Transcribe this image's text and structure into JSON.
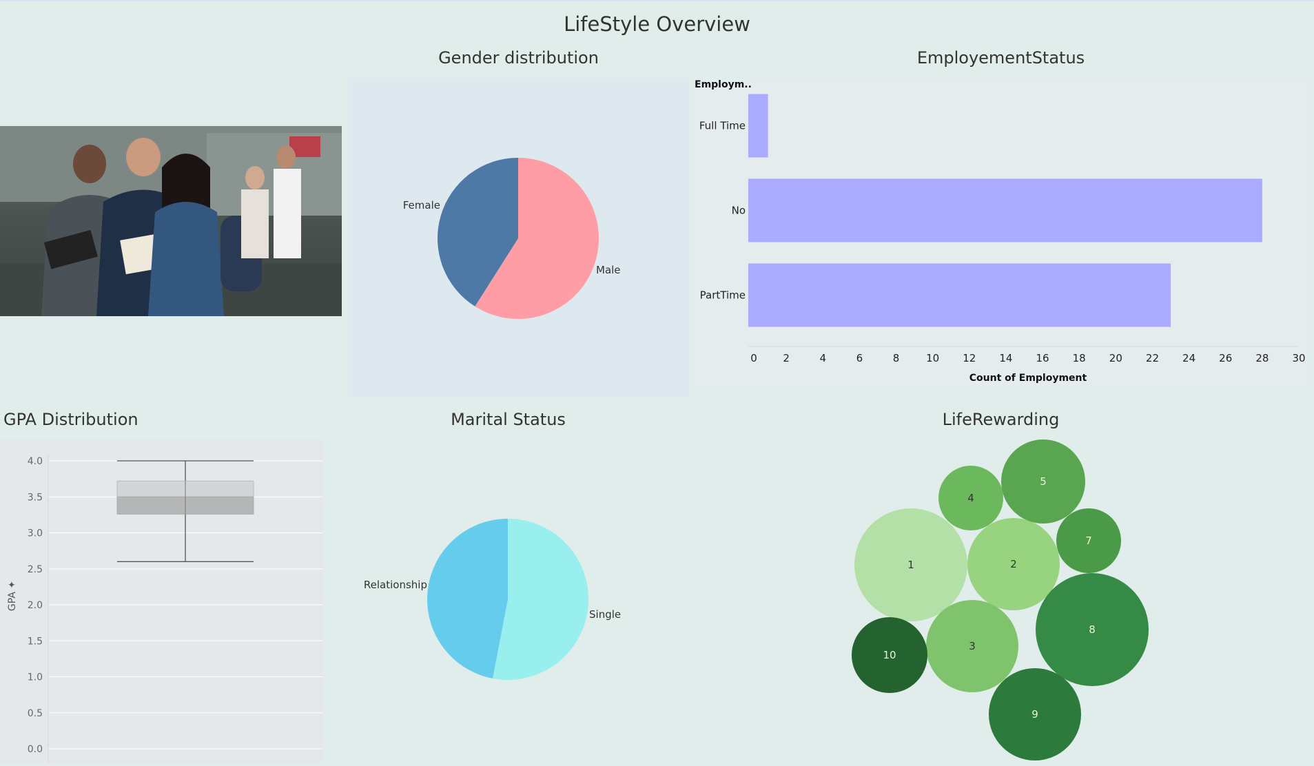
{
  "dashboard": {
    "title": "LifeStyle Overview"
  },
  "sections": {
    "gender": "Gender distribution",
    "employment": "EmployementStatus",
    "gpa": "GPA Distribution",
    "marital": "Marital Status",
    "life": "LifeRewarding"
  },
  "colors": {
    "background": "#e0edea",
    "female": "#4e79a7",
    "male": "#ff9da7",
    "bar": "#aaaaff",
    "relationship": "#66ccee",
    "single": "#99eeee"
  },
  "photo": {
    "icon": "students-photo"
  },
  "chart_data": [
    {
      "id": "gender",
      "type": "pie",
      "title": "Gender distribution",
      "slices": [
        {
          "label": "Female",
          "value": 41,
          "color": "#4e79a7"
        },
        {
          "label": "Male",
          "value": 59,
          "color": "#ff9da7"
        }
      ]
    },
    {
      "id": "employment",
      "type": "bar",
      "orientation": "horizontal",
      "title": "EmployementStatus",
      "ylabel": "Employm..",
      "xlabel": "Count of Employment",
      "categories": [
        "Full Time",
        "No",
        "PartTime"
      ],
      "values": [
        1,
        28,
        23
      ],
      "xlim": [
        0,
        30
      ],
      "xticks": [
        0,
        2,
        4,
        6,
        8,
        10,
        12,
        14,
        16,
        18,
        20,
        22,
        24,
        26,
        28,
        30
      ],
      "color": "#aaaaff",
      "grid": false
    },
    {
      "id": "gpa",
      "type": "box",
      "title": "GPA Distribution",
      "ylabel": "GPA",
      "ylim": [
        0,
        4.1
      ],
      "yticks": [
        0.0,
        0.5,
        1.0,
        1.5,
        2.0,
        2.5,
        3.0,
        3.5,
        4.0
      ],
      "tick_labels": [
        "0.0",
        "0.5",
        "1.0",
        "1.5",
        "2.0",
        "2.5",
        "3.0",
        "3.5",
        "4.0"
      ],
      "box": {
        "min": 2.6,
        "q1": 3.26,
        "median": 3.5,
        "q3": 3.72,
        "max": 4.0
      },
      "grid": true
    },
    {
      "id": "marital",
      "type": "pie",
      "title": "Marital Status",
      "slices": [
        {
          "label": "Single",
          "value": 53,
          "color": "#99eeee"
        },
        {
          "label": "Relationship",
          "value": 47,
          "color": "#66ccee"
        }
      ]
    },
    {
      "id": "life",
      "type": "bubble",
      "title": "LifeRewarding",
      "bubbles": [
        {
          "label": "1",
          "size": 18,
          "color": "#b3e0a6",
          "text": "#333333"
        },
        {
          "label": "2",
          "size": 12,
          "color": "#98d47f",
          "text": "#333333"
        },
        {
          "label": "3",
          "size": 12,
          "color": "#7fc46c",
          "text": "#333333"
        },
        {
          "label": "4",
          "size": 6,
          "color": "#6cb85c",
          "text": "#333333"
        },
        {
          "label": "5",
          "size": 10,
          "color": "#5aa550",
          "text": "#e8f5e2"
        },
        {
          "label": "7",
          "size": 6,
          "color": "#4a9a48",
          "text": "#e8f5e2"
        },
        {
          "label": "8",
          "size": 18,
          "color": "#358a45",
          "text": "#e8f5e2"
        },
        {
          "label": "9",
          "size": 12,
          "color": "#2c7a3c",
          "text": "#e8f5e2"
        },
        {
          "label": "10",
          "size": 8,
          "color": "#24622f",
          "text": "#e8f5e2"
        }
      ]
    }
  ]
}
